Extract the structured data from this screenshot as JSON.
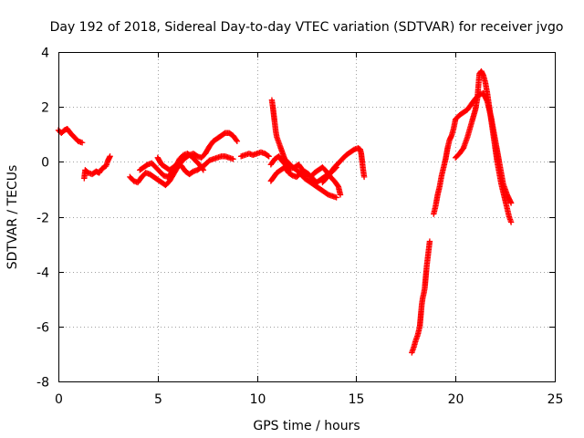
{
  "chart_data": {
    "type": "scatter",
    "title": "Day 192 of 2018, Sidereal Day-to-day VTEC variation (SDTVAR) for receiver jvgo",
    "xlabel": "GPS time / hours",
    "ylabel": "SDTVAR / TECUs",
    "xlim": [
      0,
      25
    ],
    "ylim": [
      -8,
      4
    ],
    "xticks": [
      "0",
      "5",
      "10",
      "15",
      "20",
      "25"
    ],
    "yticks": [
      "-8",
      "-6",
      "-4",
      "-2",
      "0",
      "2",
      "4"
    ],
    "grid": true,
    "marker": "plus",
    "color": "#ff0000",
    "segments": [
      {
        "name": "track-1",
        "points": [
          [
            0.0,
            1.15
          ],
          [
            0.15,
            1.05
          ],
          [
            0.3,
            1.15
          ],
          [
            0.45,
            1.2
          ],
          [
            0.6,
            1.05
          ],
          [
            0.8,
            0.9
          ],
          [
            1.0,
            0.75
          ],
          [
            1.2,
            0.7
          ]
        ]
      },
      {
        "name": "track-2",
        "points": [
          [
            1.3,
            -0.6
          ],
          [
            1.35,
            -0.3
          ],
          [
            1.5,
            -0.4
          ],
          [
            1.7,
            -0.45
          ],
          [
            1.9,
            -0.35
          ],
          [
            2.05,
            -0.4
          ],
          [
            2.2,
            -0.25
          ],
          [
            2.4,
            -0.15
          ],
          [
            2.5,
            0.05
          ],
          [
            2.6,
            0.2
          ]
        ]
      },
      {
        "name": "track-3",
        "points": [
          [
            3.6,
            -0.55
          ],
          [
            3.8,
            -0.7
          ],
          [
            4.0,
            -0.75
          ],
          [
            4.2,
            -0.55
          ],
          [
            4.4,
            -0.4
          ],
          [
            4.6,
            -0.45
          ],
          [
            4.8,
            -0.55
          ],
          [
            5.0,
            -0.65
          ],
          [
            5.2,
            -0.75
          ],
          [
            5.4,
            -0.85
          ],
          [
            5.6,
            -0.7
          ],
          [
            5.8,
            -0.45
          ],
          [
            6.0,
            -0.2
          ],
          [
            6.2,
            0.0
          ],
          [
            6.4,
            0.15
          ],
          [
            6.6,
            0.25
          ],
          [
            6.8,
            0.3
          ],
          [
            7.0,
            0.2
          ],
          [
            7.2,
            0.15
          ],
          [
            7.4,
            0.3
          ],
          [
            7.6,
            0.55
          ],
          [
            7.8,
            0.75
          ],
          [
            8.0,
            0.85
          ],
          [
            8.2,
            0.95
          ],
          [
            8.4,
            1.05
          ],
          [
            8.6,
            1.05
          ],
          [
            8.8,
            0.95
          ],
          [
            9.0,
            0.75
          ]
        ]
      },
      {
        "name": "track-4",
        "points": [
          [
            5.0,
            0.15
          ],
          [
            5.2,
            -0.1
          ],
          [
            5.4,
            -0.2
          ],
          [
            5.6,
            -0.3
          ],
          [
            5.8,
            -0.2
          ],
          [
            6.0,
            -0.05
          ],
          [
            6.2,
            -0.15
          ],
          [
            6.4,
            -0.35
          ],
          [
            6.6,
            -0.45
          ],
          [
            6.8,
            -0.35
          ],
          [
            7.0,
            -0.3
          ],
          [
            7.2,
            -0.2
          ],
          [
            7.4,
            -0.1
          ],
          [
            7.6,
            0.05
          ],
          [
            7.8,
            0.1
          ],
          [
            8.0,
            0.15
          ],
          [
            8.2,
            0.2
          ],
          [
            8.4,
            0.2
          ],
          [
            8.6,
            0.15
          ],
          [
            8.8,
            0.1
          ]
        ]
      },
      {
        "name": "track-5",
        "points": [
          [
            4.1,
            -0.3
          ],
          [
            4.3,
            -0.2
          ],
          [
            4.5,
            -0.1
          ],
          [
            4.7,
            -0.05
          ],
          [
            4.9,
            -0.2
          ],
          [
            5.1,
            -0.35
          ],
          [
            5.3,
            -0.5
          ],
          [
            5.5,
            -0.55
          ],
          [
            5.7,
            -0.4
          ],
          [
            5.9,
            -0.2
          ],
          [
            6.1,
            0.1
          ],
          [
            6.3,
            0.25
          ],
          [
            6.5,
            0.3
          ],
          [
            6.7,
            0.2
          ],
          [
            6.9,
            0.05
          ],
          [
            7.1,
            -0.1
          ],
          [
            7.3,
            -0.3
          ]
        ]
      },
      {
        "name": "track-6",
        "points": [
          [
            9.2,
            0.2
          ],
          [
            9.4,
            0.25
          ],
          [
            9.6,
            0.3
          ],
          [
            9.8,
            0.25
          ],
          [
            10.0,
            0.3
          ],
          [
            10.2,
            0.35
          ],
          [
            10.4,
            0.3
          ],
          [
            10.6,
            0.2
          ]
        ]
      },
      {
        "name": "track-7",
        "points": [
          [
            10.75,
            2.25
          ],
          [
            10.8,
            2.0
          ],
          [
            10.85,
            1.7
          ],
          [
            10.9,
            1.4
          ],
          [
            10.95,
            1.1
          ],
          [
            11.0,
            0.9
          ],
          [
            11.1,
            0.7
          ],
          [
            11.2,
            0.5
          ],
          [
            11.3,
            0.3
          ],
          [
            11.4,
            0.1
          ],
          [
            11.6,
            -0.05
          ],
          [
            11.8,
            -0.2
          ],
          [
            12.0,
            -0.3
          ],
          [
            12.2,
            -0.45
          ],
          [
            12.4,
            -0.6
          ],
          [
            12.6,
            -0.7
          ],
          [
            12.8,
            -0.8
          ],
          [
            13.0,
            -0.9
          ],
          [
            13.2,
            -1.0
          ],
          [
            13.4,
            -1.1
          ],
          [
            13.6,
            -1.2
          ],
          [
            13.8,
            -1.25
          ],
          [
            14.0,
            -1.3
          ]
        ]
      },
      {
        "name": "track-8",
        "points": [
          [
            10.7,
            -0.7
          ],
          [
            10.8,
            -0.6
          ],
          [
            10.9,
            -0.5
          ],
          [
            11.0,
            -0.4
          ],
          [
            11.2,
            -0.3
          ],
          [
            11.4,
            -0.2
          ],
          [
            11.6,
            -0.4
          ],
          [
            11.8,
            -0.5
          ],
          [
            12.0,
            -0.55
          ],
          [
            12.2,
            -0.4
          ],
          [
            12.4,
            -0.35
          ],
          [
            12.6,
            -0.45
          ],
          [
            12.8,
            -0.6
          ],
          [
            13.0,
            -0.75
          ],
          [
            13.2,
            -0.65
          ],
          [
            13.4,
            -0.55
          ],
          [
            13.6,
            -0.45
          ],
          [
            13.8,
            -0.35
          ],
          [
            14.0,
            -0.2
          ]
        ]
      },
      {
        "name": "track-9",
        "points": [
          [
            10.7,
            -0.1
          ],
          [
            10.9,
            0.1
          ],
          [
            11.1,
            0.2
          ],
          [
            11.3,
            0.0
          ],
          [
            11.5,
            -0.15
          ],
          [
            11.7,
            -0.25
          ],
          [
            11.9,
            -0.2
          ],
          [
            12.1,
            -0.1
          ],
          [
            12.3,
            -0.3
          ],
          [
            12.5,
            -0.5
          ],
          [
            12.7,
            -0.55
          ],
          [
            12.9,
            -0.4
          ],
          [
            13.1,
            -0.3
          ],
          [
            13.3,
            -0.2
          ],
          [
            13.5,
            -0.35
          ],
          [
            13.7,
            -0.55
          ],
          [
            13.9,
            -0.7
          ],
          [
            14.1,
            -0.9
          ],
          [
            14.2,
            -1.2
          ]
        ]
      },
      {
        "name": "track-10",
        "points": [
          [
            13.3,
            -0.75
          ],
          [
            13.5,
            -0.6
          ],
          [
            13.7,
            -0.4
          ],
          [
            13.9,
            -0.2
          ],
          [
            14.1,
            -0.05
          ],
          [
            14.3,
            0.1
          ],
          [
            14.5,
            0.25
          ],
          [
            14.7,
            0.35
          ],
          [
            14.9,
            0.45
          ],
          [
            15.1,
            0.5
          ],
          [
            15.2,
            0.45
          ],
          [
            15.25,
            0.3
          ],
          [
            15.3,
            0.0
          ],
          [
            15.35,
            -0.3
          ],
          [
            15.4,
            -0.55
          ]
        ]
      },
      {
        "name": "track-11",
        "points": [
          [
            17.8,
            -6.95
          ],
          [
            17.9,
            -6.75
          ],
          [
            18.0,
            -6.5
          ],
          [
            18.1,
            -6.3
          ],
          [
            18.2,
            -6.0
          ],
          [
            18.25,
            -5.6
          ],
          [
            18.3,
            -5.2
          ],
          [
            18.35,
            -4.95
          ],
          [
            18.4,
            -4.8
          ],
          [
            18.45,
            -4.6
          ],
          [
            18.5,
            -4.2
          ],
          [
            18.55,
            -3.8
          ],
          [
            18.6,
            -3.5
          ],
          [
            18.65,
            -3.2
          ],
          [
            18.7,
            -2.9
          ]
        ]
      },
      {
        "name": "track-12",
        "points": [
          [
            18.9,
            -1.9
          ],
          [
            19.0,
            -1.6
          ],
          [
            19.1,
            -1.2
          ],
          [
            19.2,
            -0.9
          ],
          [
            19.3,
            -0.5
          ],
          [
            19.4,
            -0.2
          ],
          [
            19.5,
            0.1
          ],
          [
            19.6,
            0.5
          ],
          [
            19.7,
            0.8
          ],
          [
            19.8,
            0.95
          ],
          [
            19.9,
            1.2
          ],
          [
            20.0,
            1.55
          ],
          [
            20.2,
            1.7
          ],
          [
            20.4,
            1.8
          ],
          [
            20.6,
            1.9
          ],
          [
            20.8,
            2.1
          ],
          [
            21.0,
            2.3
          ],
          [
            21.2,
            2.45
          ],
          [
            21.4,
            2.5
          ],
          [
            21.6,
            2.2
          ],
          [
            21.8,
            1.6
          ],
          [
            22.0,
            0.8
          ],
          [
            22.2,
            0.0
          ],
          [
            22.4,
            -0.8
          ],
          [
            22.6,
            -1.2
          ],
          [
            22.8,
            -1.5
          ]
        ]
      },
      {
        "name": "track-13",
        "points": [
          [
            20.0,
            0.15
          ],
          [
            20.2,
            0.3
          ],
          [
            20.4,
            0.5
          ],
          [
            20.6,
            0.9
          ],
          [
            20.8,
            1.4
          ],
          [
            21.0,
            1.9
          ],
          [
            21.1,
            2.3
          ],
          [
            21.2,
            3.2
          ],
          [
            21.3,
            3.3
          ],
          [
            21.4,
            3.15
          ],
          [
            21.5,
            2.9
          ],
          [
            21.6,
            2.5
          ],
          [
            21.7,
            2.0
          ],
          [
            21.8,
            1.5
          ],
          [
            21.9,
            1.0
          ],
          [
            22.0,
            0.5
          ],
          [
            22.1,
            0.0
          ],
          [
            22.2,
            -0.4
          ],
          [
            22.3,
            -0.8
          ],
          [
            22.4,
            -1.1
          ],
          [
            22.5,
            -1.4
          ],
          [
            22.6,
            -1.7
          ],
          [
            22.7,
            -2.0
          ],
          [
            22.8,
            -2.2
          ]
        ]
      }
    ]
  }
}
